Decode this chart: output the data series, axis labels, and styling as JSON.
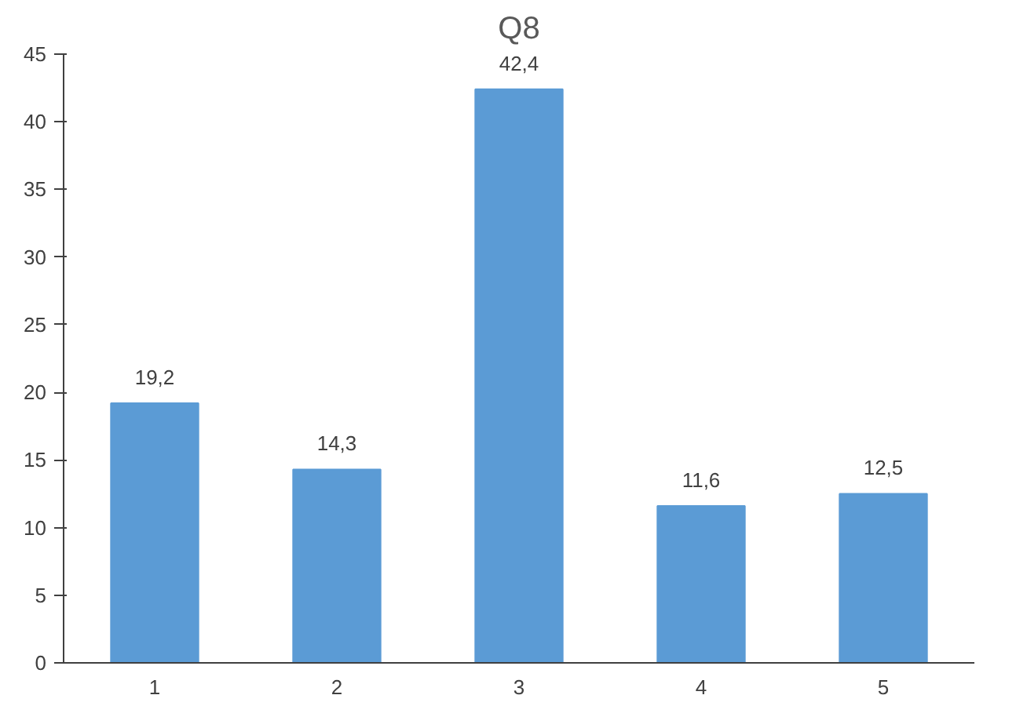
{
  "chart_data": {
    "type": "bar",
    "title": "Q8",
    "categories": [
      "1",
      "2",
      "3",
      "4",
      "5"
    ],
    "values": [
      19.2,
      14.3,
      42.4,
      11.6,
      12.5
    ],
    "value_labels": [
      "19,2",
      "14,3",
      "42,4",
      "11,6",
      "12,5"
    ],
    "color": "#5b9bd5",
    "ylim": [
      0,
      45
    ],
    "yticks": [
      0,
      5,
      10,
      15,
      20,
      25,
      30,
      35,
      40,
      45
    ],
    "grid": false
  }
}
